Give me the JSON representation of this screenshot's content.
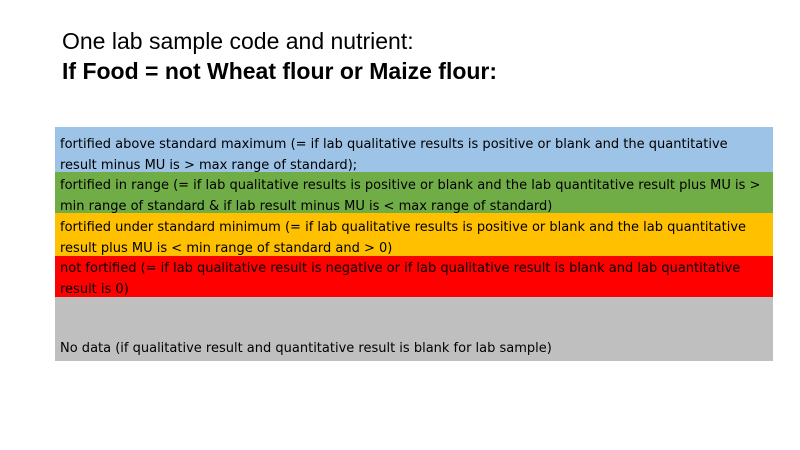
{
  "title": {
    "line1": "One lab sample code and nutrient:",
    "line2": "If Food = not Wheat flour or Maize flour:"
  },
  "legend": {
    "rows": [
      {
        "color": "#9dc3e6",
        "text": "fortified above standard maximum (= if lab qualitative results is positive or blank and the quantitative result minus MU is > max range of standard);"
      },
      {
        "color": "#70ad47",
        "text": "fortified in range (= if lab qualitative results is positive or blank and the lab quantitative result plus MU is > min range of standard & if lab result minus MU is < max range of standard)"
      },
      {
        "color": "#ffc000",
        "text": "fortified under standard minimum (= if lab qualitative results is positive or blank and the lab quantitative result plus MU is < min range of standard and > 0)"
      },
      {
        "color": "#ff0000",
        "text": "not fortified (= if lab qualitative result is negative or if lab qualitative result is blank and lab quantitative result is 0)"
      },
      {
        "color": "#bfbfbf",
        "text": "No data (if qualitative result and quantitative result is blank for lab sample)"
      }
    ]
  }
}
